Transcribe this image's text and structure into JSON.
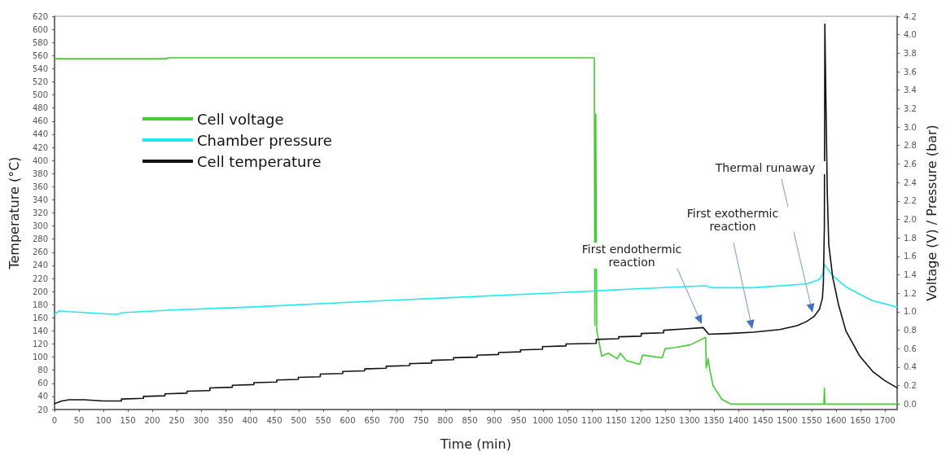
{
  "chart_data": {
    "type": "line",
    "xlabel": "Time (min)",
    "ylabel": "Temperature (°C)",
    "y2label": "Voltage (V) / Pressure (bar)",
    "xlim": [
      0,
      1725
    ],
    "xticks": [
      0,
      50,
      100,
      150,
      200,
      250,
      300,
      350,
      400,
      450,
      500,
      550,
      600,
      650,
      700,
      750,
      800,
      850,
      900,
      950,
      1000,
      1050,
      1100,
      1150,
      1200,
      1250,
      1300,
      1350,
      1400,
      1450,
      1500,
      1550,
      1600,
      1650,
      1700
    ],
    "ylim": [
      20,
      620
    ],
    "yticks": [
      20,
      40,
      60,
      80,
      100,
      120,
      140,
      160,
      180,
      200,
      220,
      240,
      260,
      280,
      300,
      320,
      340,
      360,
      380,
      400,
      420,
      440,
      460,
      480,
      500,
      520,
      540,
      560,
      580,
      600,
      620
    ],
    "y2lim": [
      -0.06,
      4.2
    ],
    "y2ticks": [
      {
        "value": 0,
        "label": "0.0"
      },
      {
        "value": 0.2,
        "label": "0.2"
      },
      {
        "value": 0.4,
        "label": "0.4"
      },
      {
        "value": 0.6,
        "label": "0.6"
      },
      {
        "value": 0.8,
        "label": "0.8"
      },
      {
        "value": 1,
        "label": "1.0"
      },
      {
        "value": 1.2,
        "label": "1.2"
      },
      {
        "value": 1.4,
        "label": "1.4"
      },
      {
        "value": 1.6,
        "label": "1.6"
      },
      {
        "value": 1.8,
        "label": "1.8"
      },
      {
        "value": 2,
        "label": "2.0"
      },
      {
        "value": 2.2,
        "label": "2.2"
      },
      {
        "value": 2.4,
        "label": "2.4"
      },
      {
        "value": 2.6,
        "label": "2.6"
      },
      {
        "value": 2.8,
        "label": "2.8"
      },
      {
        "value": 3,
        "label": "3.0"
      },
      {
        "value": 3.2,
        "label": "3.2"
      },
      {
        "value": 3.4,
        "label": "3.4"
      },
      {
        "value": 3.6,
        "label": "3.6"
      },
      {
        "value": 3.8,
        "label": "3.8"
      },
      {
        "value": 4,
        "label": "4.0"
      },
      {
        "value": 4.2,
        "label": "4.2"
      }
    ],
    "grid": false,
    "legend": "top left",
    "series": [
      {
        "name": "Cell voltage",
        "color": "#44cc33",
        "axis": "y2",
        "x": [
          0,
          230,
          231,
          1105,
          1106,
          1108,
          1110,
          1120,
          1134,
          1143,
          1152,
          1158,
          1171,
          1198,
          1204,
          1244,
          1250,
          1269,
          1301,
          1333,
          1334,
          1338,
          1341,
          1348,
          1366,
          1385,
          1575,
          1576,
          1577,
          1725
        ],
        "values": [
          3.74,
          3.74,
          3.75,
          3.75,
          0.85,
          3.14,
          0.8,
          0.52,
          0.55,
          0.52,
          0.49,
          0.55,
          0.47,
          0.43,
          0.53,
          0.5,
          0.6,
          0.61,
          0.64,
          0.72,
          0.39,
          0.49,
          0.38,
          0.2,
          0.05,
          0,
          0,
          0.17,
          0,
          0
        ]
      },
      {
        "name": "Chamber pressure",
        "color": "#22e8f0",
        "axis": "y2",
        "x": [
          0,
          10,
          30,
          127,
          140,
          250,
          401,
          676,
          1050,
          1200,
          1333,
          1345,
          1431,
          1539,
          1566,
          1572,
          1576,
          1593,
          1620,
          1648,
          1675,
          1725
        ],
        "values": [
          0.97,
          1.01,
          1.0,
          0.97,
          0.99,
          1.02,
          1.05,
          1.12,
          1.21,
          1.25,
          1.28,
          1.26,
          1.26,
          1.3,
          1.35,
          1.4,
          1.51,
          1.39,
          1.27,
          1.19,
          1.12,
          1.05
        ]
      },
      {
        "name": "Cell temperature",
        "color": "#111111",
        "x": [
          0,
          15,
          30,
          60,
          100,
          137,
          137,
          182,
          182,
          226,
          226,
          271,
          271,
          318,
          318,
          364,
          364,
          408,
          408,
          455,
          455,
          499,
          499,
          544,
          544,
          590,
          590,
          635,
          635,
          679,
          679,
          727,
          727,
          772,
          772,
          817,
          817,
          865,
          865,
          909,
          909,
          954,
          954,
          999,
          999,
          1047,
          1047,
          1109,
          1109,
          1155,
          1155,
          1201,
          1201,
          1247,
          1247,
          1290,
          1328,
          1339,
          1380,
          1431,
          1485,
          1520,
          1539,
          1555,
          1566,
          1572,
          1574,
          1576,
          1577,
          1579,
          1582,
          1585,
          1593,
          1605,
          1620,
          1648,
          1675,
          1700,
          1725
        ],
        "values": [
          29,
          33,
          35,
          35,
          33,
          33,
          36,
          37,
          40,
          41,
          44,
          45,
          48,
          49,
          53,
          54,
          57,
          58,
          61,
          62,
          65,
          66,
          69,
          70,
          74,
          75,
          78,
          79,
          82,
          83,
          86,
          87,
          90,
          91,
          95,
          96,
          99,
          100,
          103,
          104,
          107,
          108,
          111,
          112,
          116,
          117,
          120,
          121,
          127,
          128,
          131,
          132,
          136,
          137,
          141,
          143,
          145,
          135,
          136,
          138,
          142,
          148,
          154,
          162,
          173,
          190,
          214,
          300,
          608,
          500,
          350,
          272,
          222,
          180,
          140,
          102,
          78,
          64,
          53
        ]
      }
    ],
    "annotations": [
      "First endothermic reaction",
      "First exothermic reaction",
      "Thermal runaway"
    ]
  }
}
